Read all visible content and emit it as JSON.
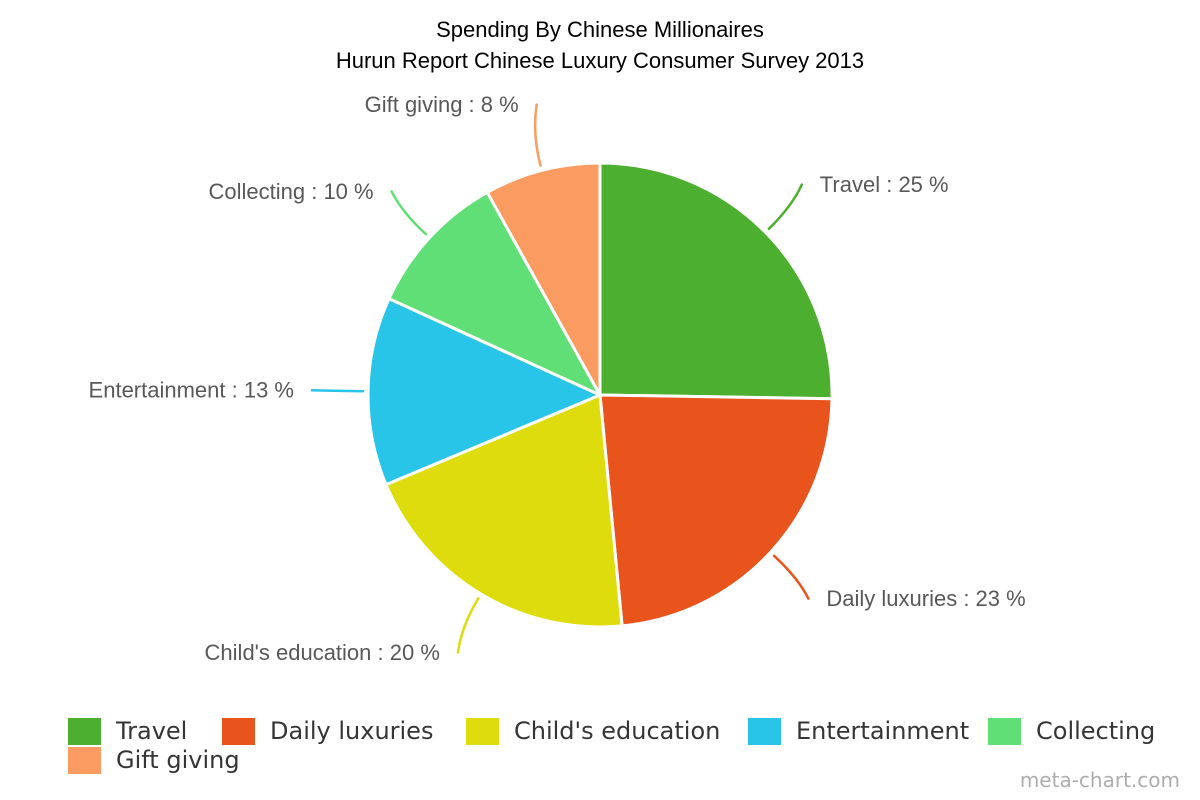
{
  "title": "Spending By Chinese Millionaires",
  "subtitle": "Hurun Report Chinese Luxury Consumer Survey 2013",
  "watermark": "meta-chart.com",
  "chart_data": {
    "type": "pie",
    "title": "Spending By Chinese Millionaires",
    "subtitle": "Hurun Report Chinese Luxury Consumer Survey 2013",
    "labels": [
      "Travel",
      "Daily luxuries",
      "Child's education",
      "Entertainment",
      "Collecting",
      "Gift giving"
    ],
    "values": [
      25,
      23,
      20,
      13,
      10,
      8
    ],
    "unit": "%",
    "colors": [
      "#4DAF30",
      "#E8541C",
      "#DEDC0D",
      "#29C5E8",
      "#60DF76",
      "#FA9B61"
    ],
    "callouts": [
      "Travel : 25 %",
      "Daily luxuries : 23 %",
      "Child's education : 20 %",
      "Entertainment : 13 %",
      "Collecting : 10 %",
      "Gift giving : 8 %"
    ],
    "legend": [
      "Travel",
      "Daily luxuries",
      "Child's education",
      "Entertainment",
      "Collecting",
      "Gift giving"
    ],
    "legend_position": "bottom",
    "slice_order": "clockwise-from-top",
    "label_color": "#58585A",
    "title_color": "#000000",
    "legend_text_color": "#353535",
    "watermark_color": "#ADADAD"
  }
}
